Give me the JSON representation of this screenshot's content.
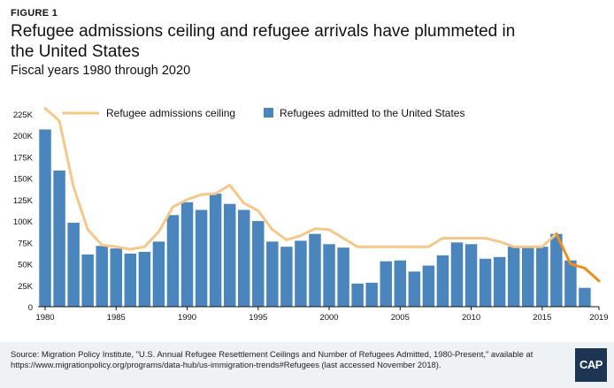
{
  "header": {
    "figure_label": "FIGURE 1",
    "title": "Refugee admissions ceiling and refugee arrivals have plummeted in the United States",
    "subtitle": "Fiscal years 1980 through 2020"
  },
  "footer": {
    "source": "Source: Migration Policy Institute, \"U.S. Annual Refugee Resettlement Ceilings and Number of Refugees Admitted, 1980-Present,\" available at https://www.migrationpolicy.org/programs/data-hub/us-immigration-trends#Refugees (last accessed November 2018).",
    "logo_text": "CAP"
  },
  "colors": {
    "bars": "#4a86bd",
    "ceiling_line": "#f5c889",
    "projection_line": "#ef8f1b",
    "axis": "#111111"
  },
  "chart_data": {
    "type": "bar+line",
    "x": [
      1980,
      1981,
      1982,
      1983,
      1984,
      1985,
      1986,
      1987,
      1988,
      1989,
      1990,
      1991,
      1992,
      1993,
      1994,
      1995,
      1996,
      1997,
      1998,
      1999,
      2000,
      2001,
      2002,
      2003,
      2004,
      2005,
      2006,
      2007,
      2008,
      2009,
      2010,
      2011,
      2012,
      2013,
      2014,
      2015,
      2016,
      2017,
      2018,
      2019
    ],
    "x_tick_labels": [
      "1980",
      "1985",
      "1990",
      "1995",
      "2000",
      "2005",
      "2010",
      "2015",
      "2019"
    ],
    "x_tick_values": [
      1980,
      1985,
      1990,
      1995,
      2000,
      2005,
      2010,
      2015,
      2019
    ],
    "ylim": [
      0,
      225000
    ],
    "y_ticks": [
      0,
      25000,
      50000,
      75000,
      100000,
      125000,
      150000,
      175000,
      200000,
      225000
    ],
    "y_tick_labels": [
      "0",
      "25K",
      "50K",
      "75K",
      "100K",
      "125K",
      "150K",
      "175K",
      "200K",
      "225K"
    ],
    "series": [
      {
        "name": "Refugees admitted to the United States",
        "type": "bar",
        "x": [
          1980,
          1981,
          1982,
          1983,
          1984,
          1985,
          1986,
          1987,
          1988,
          1989,
          1990,
          1991,
          1992,
          1993,
          1994,
          1995,
          1996,
          1997,
          1998,
          1999,
          2000,
          2001,
          2002,
          2003,
          2004,
          2005,
          2006,
          2007,
          2008,
          2009,
          2010,
          2011,
          2012,
          2013,
          2014,
          2015,
          2016,
          2017,
          2018
        ],
        "values": [
          207000,
          159000,
          98000,
          61000,
          71000,
          68000,
          62000,
          64000,
          76000,
          107000,
          122000,
          113000,
          132000,
          120000,
          113000,
          100000,
          76000,
          70000,
          77000,
          85000,
          73000,
          69000,
          27000,
          28000,
          53000,
          54000,
          41000,
          48000,
          60000,
          75000,
          73000,
          56000,
          58000,
          70000,
          70000,
          70000,
          85000,
          54000,
          22000
        ]
      },
      {
        "name": "Refugee admissions ceiling",
        "type": "line",
        "x": [
          1980,
          1981,
          1982,
          1983,
          1984,
          1985,
          1986,
          1987,
          1988,
          1989,
          1990,
          1991,
          1992,
          1993,
          1994,
          1995,
          1996,
          1997,
          1998,
          1999,
          2000,
          2001,
          2002,
          2003,
          2004,
          2005,
          2006,
          2007,
          2008,
          2009,
          2010,
          2011,
          2012,
          2013,
          2014,
          2015,
          2016
        ],
        "values": [
          231700,
          217000,
          140000,
          90000,
          72000,
          70000,
          67000,
          70000,
          87500,
          116500,
          125000,
          131000,
          132000,
          142000,
          121000,
          112000,
          90000,
          78000,
          83000,
          91000,
          90000,
          80000,
          70000,
          70000,
          70000,
          70000,
          70000,
          70000,
          80000,
          80000,
          80000,
          80000,
          76000,
          70000,
          70000,
          70000,
          85000
        ]
      },
      {
        "name": "Refugee admissions ceiling (recent)",
        "type": "line",
        "x": [
          2016,
          2017,
          2018,
          2019
        ],
        "values": [
          85000,
          50000,
          45000,
          30000
        ]
      }
    ],
    "legend": [
      "Refugee admissions ceiling",
      "Refugees admitted to the United States"
    ],
    "legend_placement": "top",
    "title": "Refugee admissions ceiling and refugee arrivals have plummeted in the United States",
    "xlabel": "",
    "ylabel": ""
  }
}
